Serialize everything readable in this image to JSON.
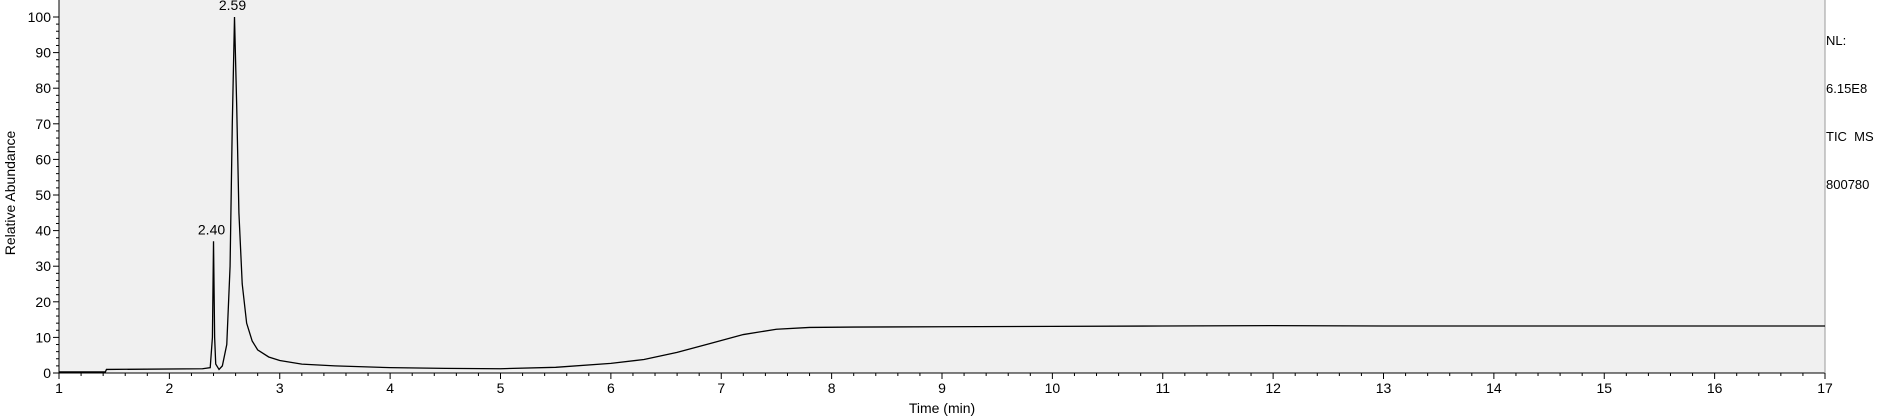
{
  "info_box": {
    "line1": "NL:",
    "line2": "6.15E8",
    "line3": "TIC  MS",
    "line4": "800780"
  },
  "chart_data": {
    "type": "line",
    "xlabel": "Time (min)",
    "ylabel": "Relative Abundance",
    "xlim": [
      1,
      17
    ],
    "ylim": [
      0,
      100
    ],
    "x_ticks": [
      1,
      2,
      3,
      4,
      5,
      6,
      7,
      8,
      9,
      10,
      11,
      12,
      13,
      14,
      15,
      16,
      17
    ],
    "y_ticks": [
      0,
      10,
      20,
      30,
      40,
      50,
      60,
      70,
      80,
      90,
      100
    ],
    "grid": false,
    "background_color": "#f0f0f0",
    "line_color": "#000000",
    "peak_annotations": [
      {
        "label": "2.40",
        "x": 2.4,
        "y": 37
      },
      {
        "label": "2.59",
        "x": 2.59,
        "y": 100
      }
    ],
    "series": [
      {
        "x": [
          1.0,
          1.42,
          1.43,
          2.3,
          2.37,
          2.39,
          2.4,
          2.41,
          2.42,
          2.45,
          2.48,
          2.52,
          2.55,
          2.57,
          2.59,
          2.61,
          2.63,
          2.66,
          2.7,
          2.75,
          2.8,
          2.9,
          3.0,
          3.2,
          3.5,
          4.0,
          4.5,
          5.0,
          5.5,
          6.0,
          6.3,
          6.6,
          6.9,
          7.2,
          7.5,
          7.8,
          8.2,
          9.0,
          10.0,
          11.0,
          12.0,
          13.0,
          14.0,
          15.0,
          16.0,
          17.0
        ],
        "y": [
          0.3,
          0.3,
          1.0,
          1.2,
          1.5,
          10,
          37,
          10,
          2.5,
          1.0,
          2.0,
          8,
          30,
          70,
          100,
          75,
          45,
          25,
          14,
          9,
          6.5,
          4.5,
          3.5,
          2.5,
          2.0,
          1.5,
          1.3,
          1.2,
          1.6,
          2.7,
          3.8,
          5.8,
          8.3,
          10.8,
          12.3,
          12.8,
          12.9,
          13.0,
          13.1,
          13.2,
          13.3,
          13.2,
          13.2,
          13.2,
          13.2,
          13.2
        ]
      }
    ]
  }
}
